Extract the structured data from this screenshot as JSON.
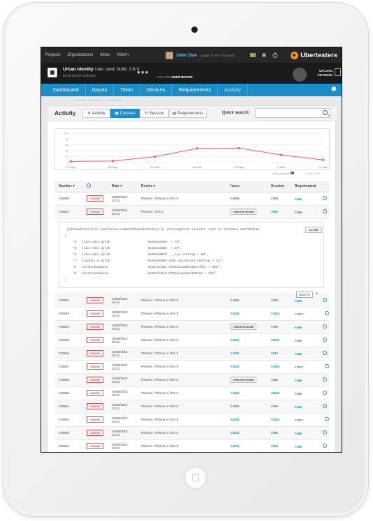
{
  "topbar": {
    "nav": [
      "Projects",
      "Organizations",
      "Inbox",
      "Admin"
    ],
    "user_name": "John Doe",
    "login_note": "Logged in with Facebook",
    "logo": "Ubertesters"
  },
  "project": {
    "name": "Urban Identity",
    "rev": "rev. next, build: 1.6.3",
    "company": "Eastimpeak Software",
    "status_prefix": "YOU ARE",
    "status_value": "UBERTESTER",
    "upload": "UPLOAD REVISION"
  },
  "tabs": [
    "Dashboard",
    "Issues",
    "Team",
    "Devices",
    "Requirements",
    "Activity"
  ],
  "breadcrumb": "HOME  ›  PROJECTS  ›  DEVICES",
  "activity": {
    "title": "Activity",
    "segments": [
      "Activity",
      "Crashes",
      "Session",
      "Requirements"
    ],
    "quick_search_label": "Quick search:"
  },
  "chart_data": {
    "type": "line",
    "categories": [
      "27 may",
      "28 may",
      "29 may",
      "30 may",
      "31 may",
      "1 June",
      "2 June"
    ],
    "values": [
      4,
      5,
      20,
      48,
      49,
      26,
      9
    ],
    "ylim": [
      0,
      100
    ],
    "yticks": [
      0,
      20,
      40,
      60,
      80,
      100
    ],
    "yticks_shown": [
      "0",
      "20",
      "40",
      "60",
      "80",
      "100"
    ],
    "grid": true,
    "color": "#e85c6b"
  },
  "chart_notes": {
    "hide": "Hide graphics",
    "range": "1-50 - 1:16"
  },
  "table": {
    "headers": [
      "Number",
      "",
      "Date",
      "Device",
      "Issue",
      "Session",
      "Requirement"
    ],
    "rows": [
      {
        "num": "#15690",
        "date": "10/05/2013",
        "time": "10:31",
        "device": "iPhone1 / iPhone 4 / iOS 6",
        "issue": "#1655",
        "session": "#186",
        "req": "#466"
      },
      {
        "num": "#15651",
        "date": "10/05/2013",
        "time": "10:31",
        "device": "iPhone1 / iOS 6",
        "issue": "CREATE ISSUE",
        "session": "#650",
        "req": "#466"
      }
    ],
    "rows2": [
      {
        "num": "#15652",
        "date": "10/05/2013",
        "time": "10:31",
        "device": "iPhone1 / iPhone 4 / iOS 6",
        "issue": "#1655",
        "session": "#186",
        "req": "#466"
      },
      {
        "num": "#15649",
        "date": "10/05/2013",
        "time": "10:31",
        "device": "iPhone1 / iPhone 4 / iOS 6",
        "issue": "#4215",
        "session": "#4324",
        "req": "#7677"
      },
      {
        "num": "#15654",
        "date": "10/05/2013",
        "time": "10:31",
        "device": "iPhone1 / iPhone 4 / iOS 6",
        "issue": "CREATE ISSUE",
        "session": "#186",
        "req": "#466"
      },
      {
        "num": "#15655",
        "date": "10/05/2013",
        "time": "10:31",
        "device": "iPhone1 / iPhone 4 / iOS 6",
        "issue": "#4215",
        "session": "#6543",
        "req": "#466"
      },
      {
        "num": "#15656",
        "date": "10/05/2013",
        "time": "10:31",
        "device": "iPhone1 / iPhone 4 / iOS 6",
        "issue": "#1655",
        "session": "#186",
        "req": "#466"
      },
      {
        "num": "#15657",
        "date": "10/05/2013",
        "time": "10:31",
        "device": "iPhone1 / iPhone 4 / iOS 6",
        "issue": "#4215",
        "session": "#4324",
        "req": "#7677"
      },
      {
        "num": "#15658",
        "date": "10/05/2013",
        "time": "10:31",
        "device": "iPhone1 / iPhone 4 / iOS 6",
        "issue": "CREATE ISSUE",
        "session": "#186",
        "req": "#466"
      },
      {
        "num": "#15660",
        "date": "10/05/2013",
        "time": "10:31",
        "device": "iPhone1 / iPhone 4 / iOS 6",
        "issue": "#1655",
        "session": "#6543",
        "req": "#466"
      },
      {
        "num": "#15661",
        "date": "10/05/2013",
        "time": "10:31",
        "device": "iPhone1 / iPhone 4 / iOS 6",
        "issue": "#1655",
        "session": "#186",
        "req": "#466"
      },
      {
        "num": "#15662",
        "date": "10/05/2013",
        "time": "10:31",
        "device": "iPhone1 / iPhone 4 / iOS 6",
        "issue": "#4215",
        "session": "#4324",
        "req": "#7677"
      },
      {
        "num": "#15650",
        "date": "10/05/2013",
        "time": "10:31",
        "device": "iPhone1 / iPhone 4 / iOS 6",
        "issue": "#4215",
        "session": "#186",
        "req": "#466"
      },
      {
        "num": "#15651",
        "date": "10/05/2013",
        "time": "10:31",
        "device": "iPhone1 / iPhone 4 / iOS 6",
        "issue": "#4215",
        "session": "#186",
        "req": "#466"
      }
    ],
    "crash_label": "CRASH"
  },
  "trace": {
    "lines": [
      "-[UIViewController tableView:numberOfRowsInSection:]: unrecognized selector sent to instance 0x1f93dca0",
      "(",
      "    *4   libc++abi.dylib                    0x3b4b315b  + 78\",",
      "    *5   libc++abi.dylib                    0x3b4b315b  + 19\",",
      "    *6   libc++abi.dylib                    0x3b4b462b  __cxa_rethrow + 98\",",
      "    *7   libobjc.A.dylib                    0x3b6b5965 objc_exception_rethrow + 12\",",
      "    *8   CoreFoundation                     0x33cbc2a1 CFRunLoopRunSpecific + 456\",",
      "    *9   CoreFoundation                     0x33cbc0c9 CFRunLoopRunInMode + 104\"",
      ")"
    ],
    "close": "CLOSE",
    "delete": "DELETE"
  }
}
